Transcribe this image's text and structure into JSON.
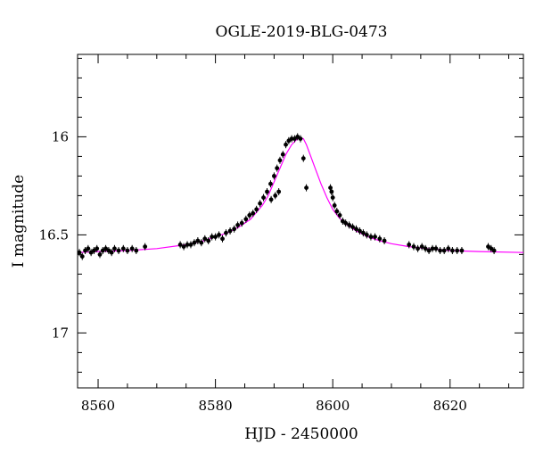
{
  "chart_data": {
    "type": "scatter",
    "title": "OGLE-2019-BLG-0473",
    "xlabel": "HJD - 2450000",
    "ylabel": "I magnitude",
    "xlim": [
      8556.5,
      8632.5
    ],
    "ylim": [
      17.28,
      15.58
    ],
    "y_inverted": true,
    "x_ticks": [
      8560,
      8580,
      8600,
      8620
    ],
    "x_tick_labels": [
      "8560",
      "8580",
      "8600",
      "8620"
    ],
    "y_ticks": [
      16,
      16.5,
      17
    ],
    "y_tick_labels": [
      "16",
      "16.5",
      "17"
    ],
    "grid": false,
    "series": [
      {
        "kind": "points",
        "color": "#000000",
        "x": [
          8556.8,
          8557.3,
          8557.8,
          8558.3,
          8558.8,
          8559.3,
          8559.8,
          8560.3,
          8560.8,
          8561.3,
          8561.8,
          8562.3,
          8562.8,
          8563.5,
          8564.3,
          8565.0,
          8565.8,
          8566.5,
          8568.0,
          8574.0,
          8574.6,
          8575.2,
          8575.8,
          8576.4,
          8577.0,
          8577.6,
          8578.2,
          8578.8,
          8579.4,
          8580.0,
          8580.6,
          8581.2,
          8581.8,
          8582.5,
          8583.2,
          8583.8,
          8584.5,
          8585.2,
          8585.8,
          8586.4,
          8587.0,
          8587.6,
          8588.2,
          8588.8,
          8589.4,
          8590.0,
          8590.5,
          8591.0,
          8591.5,
          8592.0,
          8592.5,
          8593.0,
          8593.5,
          8594.0,
          8594.5,
          8595.0,
          8595.5,
          8589.5,
          8590.2,
          8590.8,
          8599.6,
          8599.8,
          8600.0,
          8600.3,
          8600.7,
          8601.2,
          8601.7,
          8602.2,
          8602.8,
          8603.4,
          8604.0,
          8604.6,
          8605.2,
          8605.8,
          8606.5,
          8607.2,
          8608.0,
          8608.8,
          8613.0,
          8613.8,
          8614.5,
          8615.2,
          8615.8,
          8616.4,
          8617.0,
          8617.6,
          8618.3,
          8619.0,
          8619.7,
          8620.4,
          8621.2,
          8622.0,
          8626.5,
          8627.0,
          8627.5
        ],
        "y": [
          16.59,
          16.61,
          16.58,
          16.57,
          16.59,
          16.58,
          16.57,
          16.6,
          16.58,
          16.57,
          16.58,
          16.59,
          16.57,
          16.58,
          16.57,
          16.58,
          16.57,
          16.58,
          16.56,
          16.55,
          16.56,
          16.55,
          16.55,
          16.54,
          16.53,
          16.54,
          16.52,
          16.53,
          16.51,
          16.51,
          16.5,
          16.52,
          16.49,
          16.48,
          16.47,
          16.45,
          16.44,
          16.42,
          16.4,
          16.39,
          16.37,
          16.34,
          16.31,
          16.28,
          16.24,
          16.2,
          16.16,
          16.12,
          16.09,
          16.04,
          16.02,
          16.01,
          16.01,
          16.0,
          16.01,
          16.11,
          16.26,
          16.32,
          16.3,
          16.28,
          16.26,
          16.28,
          16.31,
          16.35,
          16.38,
          16.4,
          16.43,
          16.44,
          16.45,
          16.46,
          16.47,
          16.48,
          16.49,
          16.5,
          16.51,
          16.51,
          16.52,
          16.53,
          16.55,
          16.56,
          16.57,
          16.56,
          16.57,
          16.58,
          16.57,
          16.57,
          16.58,
          16.58,
          16.57,
          16.58,
          16.58,
          16.58,
          16.56,
          16.57,
          16.58
        ]
      },
      {
        "kind": "model-curve",
        "color": "#ff00ff",
        "x": [
          8556.5,
          8560,
          8565,
          8570,
          8575,
          8578,
          8580,
          8582,
          8584,
          8586,
          8588,
          8589,
          8590,
          8591,
          8592,
          8593,
          8594,
          8594.5,
          8595,
          8595.5,
          8596,
          8597,
          8598,
          8599,
          8600,
          8601,
          8602,
          8604,
          8606,
          8608,
          8610,
          8613,
          8616,
          8620,
          8625,
          8632.5
        ],
        "y": [
          16.59,
          16.585,
          16.58,
          16.57,
          16.55,
          16.53,
          16.51,
          16.49,
          16.46,
          16.42,
          16.35,
          16.3,
          16.23,
          16.16,
          16.09,
          16.04,
          16.01,
          16.005,
          16.01,
          16.04,
          16.08,
          16.16,
          16.24,
          16.31,
          16.37,
          16.41,
          16.44,
          16.48,
          16.51,
          16.53,
          16.545,
          16.56,
          16.57,
          16.58,
          16.585,
          16.59
        ]
      }
    ]
  }
}
